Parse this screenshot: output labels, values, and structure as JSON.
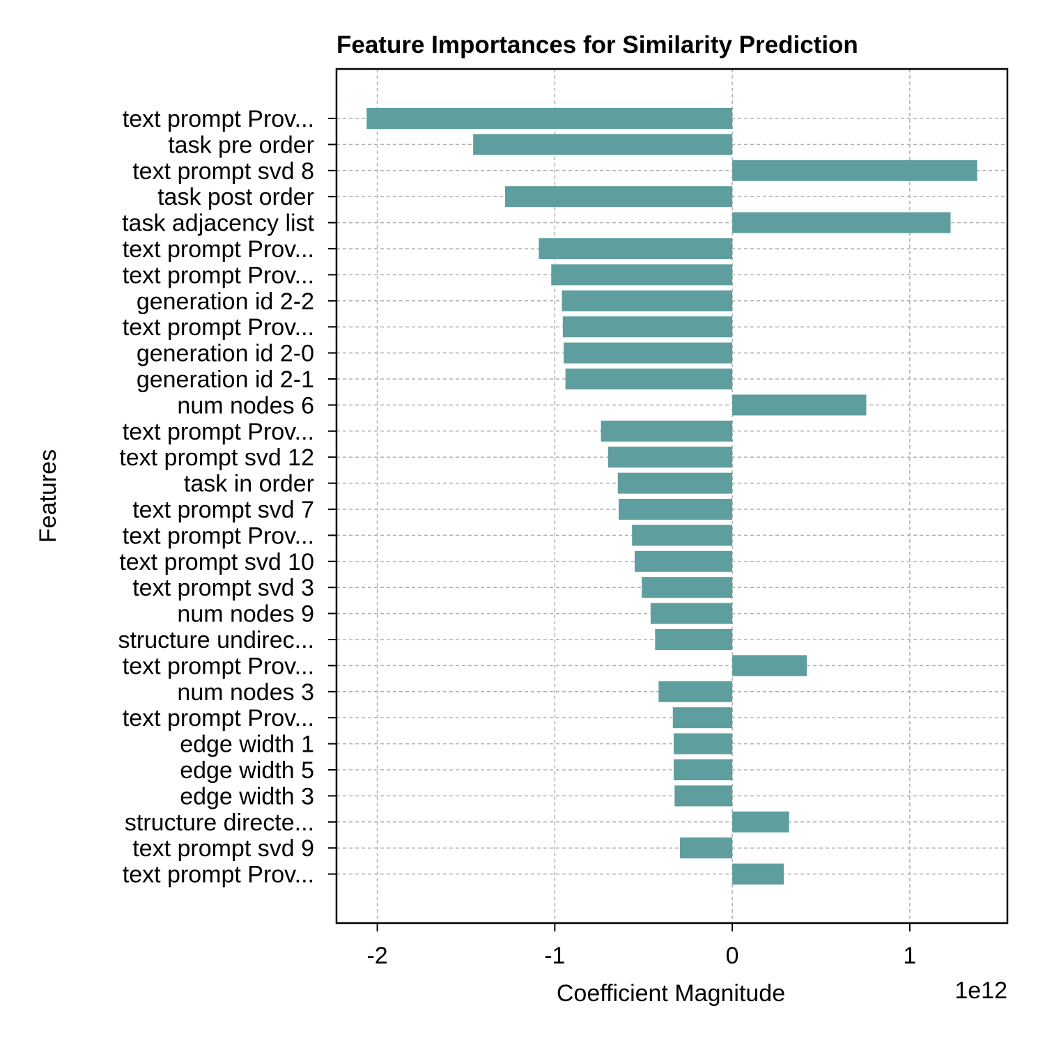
{
  "chart_data": {
    "type": "bar",
    "orientation": "horizontal",
    "title": "Feature Importances for Similarity Prediction",
    "xlabel": "Coefficient Magnitude",
    "ylabel": "Features",
    "x_offset_label": "1e12",
    "xlim": [
      -2.23,
      1.55
    ],
    "x_ticks": [
      -2,
      -1,
      0,
      1
    ],
    "x_tick_labels": [
      "-2",
      "-1",
      "0",
      "1"
    ],
    "grid": true,
    "bar_color": "#5f9e9e",
    "categories": [
      "text prompt Prov...",
      "task pre order",
      "text prompt svd 8",
      "task post order",
      "task adjacency list",
      "text prompt Prov...",
      "text prompt Prov...",
      "generation id 2-2",
      "text prompt Prov...",
      "generation id 2-0",
      "generation id 2-1",
      "num nodes 6",
      "text prompt Prov...",
      "text prompt svd 12",
      "task in order",
      "text prompt svd 7",
      "text prompt Prov...",
      "text prompt svd 10",
      "text prompt svd 3",
      "num nodes 9",
      "structure undirec...",
      "text prompt Prov...",
      "num nodes 3",
      "text prompt Prov...",
      "edge width 1",
      "edge width 5",
      "edge width 3",
      "structure directe...",
      "text prompt svd 9",
      "text prompt Prov..."
    ],
    "values": [
      -2.06,
      -1.46,
      1.38,
      -1.28,
      1.23,
      -1.09,
      -1.02,
      -0.96,
      -0.955,
      -0.95,
      -0.94,
      0.755,
      -0.74,
      -0.7,
      -0.645,
      -0.64,
      -0.565,
      -0.55,
      -0.51,
      -0.46,
      -0.435,
      0.42,
      -0.415,
      -0.335,
      -0.33,
      -0.33,
      -0.325,
      0.32,
      -0.295,
      0.29
    ]
  }
}
